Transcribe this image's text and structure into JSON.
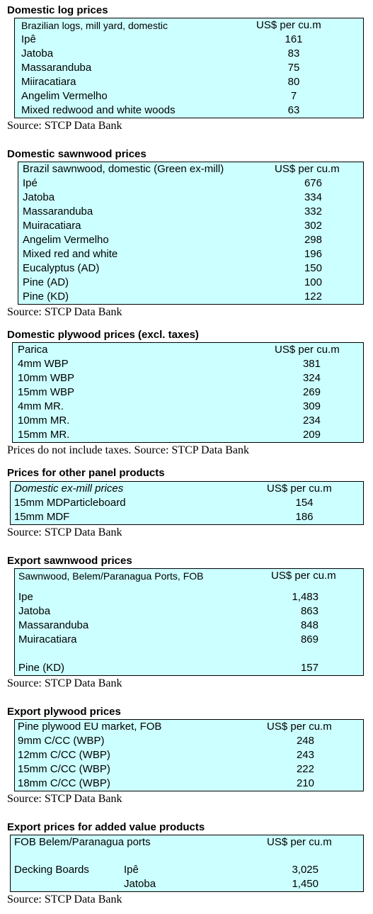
{
  "sections": [
    {
      "title": "Domestic log prices",
      "header": [
        "Brazilian logs, mill yard, domestic",
        "US$ per cu.m"
      ],
      "rows": [
        [
          "Ipê",
          "161"
        ],
        [
          "Jatoba",
          "83"
        ],
        [
          "Massaranduba",
          "75"
        ],
        [
          "Miiracatiara",
          "80"
        ],
        [
          "Angelim Vermelho",
          "7"
        ],
        [
          "Mixed redwood and white woods",
          "63"
        ]
      ],
      "source": "Source: STCP Data Bank"
    },
    {
      "title": "Domestic sawnwood prices",
      "header": [
        "Brazil sawnwood, domestic (Green ex-mill)",
        "US$ per cu.m"
      ],
      "rows": [
        [
          "Ipé",
          "676"
        ],
        [
          "Jatoba",
          "334"
        ],
        [
          "Massaranduba",
          "332"
        ],
        [
          "Muiracatiara",
          "302"
        ],
        [
          "Angelim Vermelho",
          "298"
        ],
        [
          "Mixed red and white",
          "196"
        ],
        [
          "Eucalyptus (AD)",
          "150"
        ],
        [
          "Pine (AD)",
          "100"
        ],
        [
          "Pine (KD)",
          "122"
        ]
      ],
      "source": "Source: STCP Data Bank"
    },
    {
      "title": "Domestic plywood prices (excl. taxes)",
      "header": [
        "Parica",
        "US$ per cu.m"
      ],
      "rows": [
        [
          "4mm WBP",
          "381"
        ],
        [
          "10mm WBP",
          "324"
        ],
        [
          "15mm WBP",
          "269"
        ],
        [
          "4mm MR.",
          "309"
        ],
        [
          "10mm MR.",
          "234"
        ],
        [
          "15mm MR.",
          "209"
        ]
      ],
      "source": "Prices do not include taxes. Source: STCP Data Bank"
    },
    {
      "title": "Prices for other panel products",
      "header": [
        "Domestic ex-mill prices",
        "US$ per cu.m"
      ],
      "rows": [
        [
          "15mm MDParticleboard",
          "154"
        ],
        [
          "15mm MDF",
          "186"
        ]
      ],
      "source": "Source: STCP Data Bank"
    },
    {
      "title": "Export sawnwood prices",
      "header": [
        "Sawnwood, Belem/Paranagua Ports, FOB",
        "US$ per cu.m"
      ],
      "rows": [
        [
          "Ipe",
          "1,483"
        ],
        [
          "Jatoba",
          "863"
        ],
        [
          "Massaranduba",
          "848"
        ],
        [
          "Muiracatiara",
          "869"
        ],
        [
          "Pine (KD)",
          "157"
        ]
      ],
      "source": "Source: STCP Data Bank"
    },
    {
      "title": "Export plywood prices",
      "header": [
        "Pine plywood EU market, FOB",
        "US$ per cu.m"
      ],
      "rows": [
        [
          "9mm C/CC (WBP)",
          "248"
        ],
        [
          "12mm C/CC (WBP)",
          "243"
        ],
        [
          "15mm C/CC (WBP)",
          "222"
        ],
        [
          "18mm C/CC (WBP)",
          "210"
        ]
      ],
      "source": "Source: STCP Data Bank"
    },
    {
      "title": "Export prices for added value products",
      "header": [
        "FOB Belem/Paranagua ports",
        "US$ per cu.m"
      ],
      "rows": [
        [
          "Decking Boards",
          "Ipê",
          "3,025"
        ],
        [
          "Jatoba",
          "1,450"
        ]
      ],
      "source": "Source: STCP Data Bank"
    }
  ]
}
